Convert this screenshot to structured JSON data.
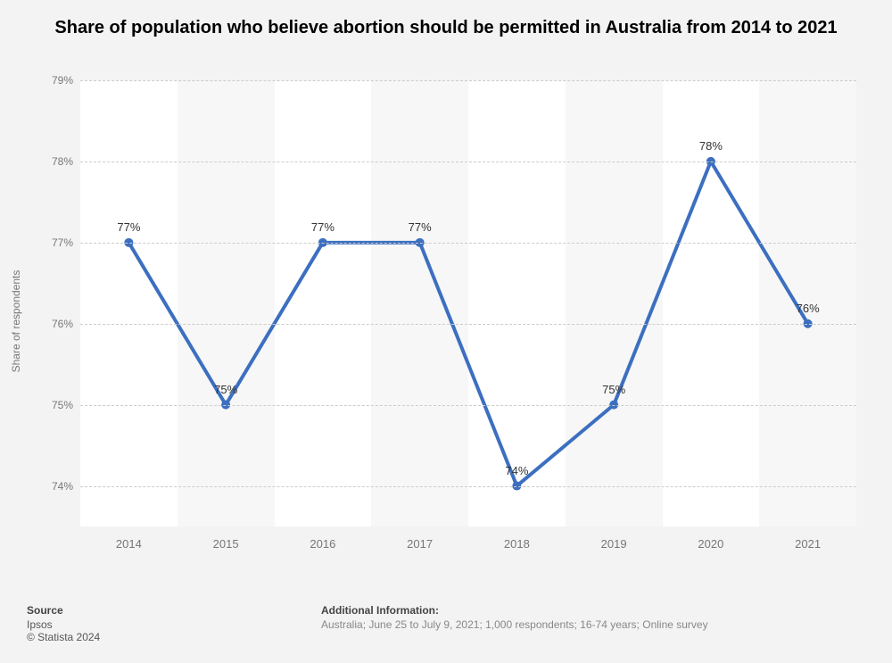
{
  "title": "Share of population who believe abortion should be permitted in Australia from 2014 to 2021",
  "chart": {
    "type": "line",
    "ylabel": "Share of respondents",
    "categories": [
      "2014",
      "2015",
      "2016",
      "2017",
      "2018",
      "2019",
      "2020",
      "2021"
    ],
    "values": [
      77,
      75,
      77,
      77,
      74,
      75,
      78,
      76
    ],
    "point_labels": [
      "77%",
      "75%",
      "77%",
      "77%",
      "74%",
      "75%",
      "78%",
      "76%"
    ],
    "ylim": [
      73.5,
      79
    ],
    "yticks": [
      74,
      75,
      76,
      77,
      78,
      79
    ],
    "ytick_labels": [
      "74%",
      "75%",
      "76%",
      "77%",
      "78%",
      "79%"
    ],
    "line_color": "#3c6fc0",
    "line_width": 4,
    "marker_color": "#3c6fc0",
    "marker_radius": 5,
    "grid_color": "#cccccc",
    "background_color": "#ffffff",
    "band_color": "#f7f7f7",
    "font_color_axis": "#777777",
    "font_size_axis": 12,
    "label_fontsize": 13,
    "title_fontsize": 20
  },
  "footer": {
    "source_head": "Source",
    "source_name": "Ipsos",
    "copyright": "© Statista 2024",
    "info_head": "Additional Information:",
    "info_text": "Australia; June 25 to July 9, 2021; 1,000 respondents; 16-74 years; Online survey"
  }
}
